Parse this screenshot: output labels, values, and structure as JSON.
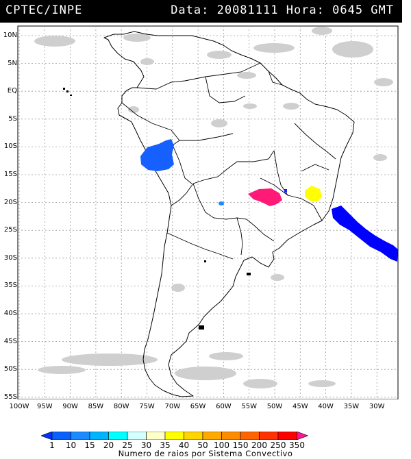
{
  "header": {
    "org": "CPTEC/INPE",
    "meta": "Data: 20081111 Hora: 0645 GMT"
  },
  "axes": {
    "lat_labels": [
      "10N",
      "5N",
      "EQ",
      "5S",
      "10S",
      "15S",
      "20S",
      "25S",
      "30S",
      "35S",
      "40S",
      "45S",
      "50S",
      "55S"
    ],
    "lon_labels": [
      "100W",
      "95W",
      "90W",
      "85W",
      "80W",
      "75W",
      "70W",
      "65W",
      "60W",
      "55W",
      "50W",
      "45W",
      "40W",
      "35W",
      "30W"
    ]
  },
  "colorbar": {
    "title": "Numero de raios por Sistema Convectivo",
    "labels": [
      "1",
      "10",
      "15",
      "20",
      "25",
      "30",
      "35",
      "40",
      "50",
      "100",
      "150",
      "200",
      "250",
      "350"
    ],
    "colors": [
      "#0033ff",
      "#0a5fff",
      "#1a8cff",
      "#00b4ff",
      "#00ffff",
      "#d4ffff",
      "#ffffc8",
      "#ffff00",
      "#ffd400",
      "#ffaa00",
      "#ff8c00",
      "#ff6400",
      "#ff3200",
      "#ff0000",
      "#ff1493"
    ]
  },
  "systems": [
    {
      "name": "peru-amazon-cluster",
      "color": "#1560ff",
      "lightning_class": "10-15"
    },
    {
      "name": "paraguay-small-cell",
      "color": "#1a8cff",
      "lightning_class": "10-15"
    },
    {
      "name": "brazil-center-west-cluster",
      "color": "#ff1a78",
      "lightning_class": "350+"
    },
    {
      "name": "minas-gerais-cluster",
      "color": "#ffff00",
      "lightning_class": "35-40"
    },
    {
      "name": "atlantic-frontal-band",
      "color": "#0000ff",
      "lightning_class": "1-10"
    }
  ]
}
